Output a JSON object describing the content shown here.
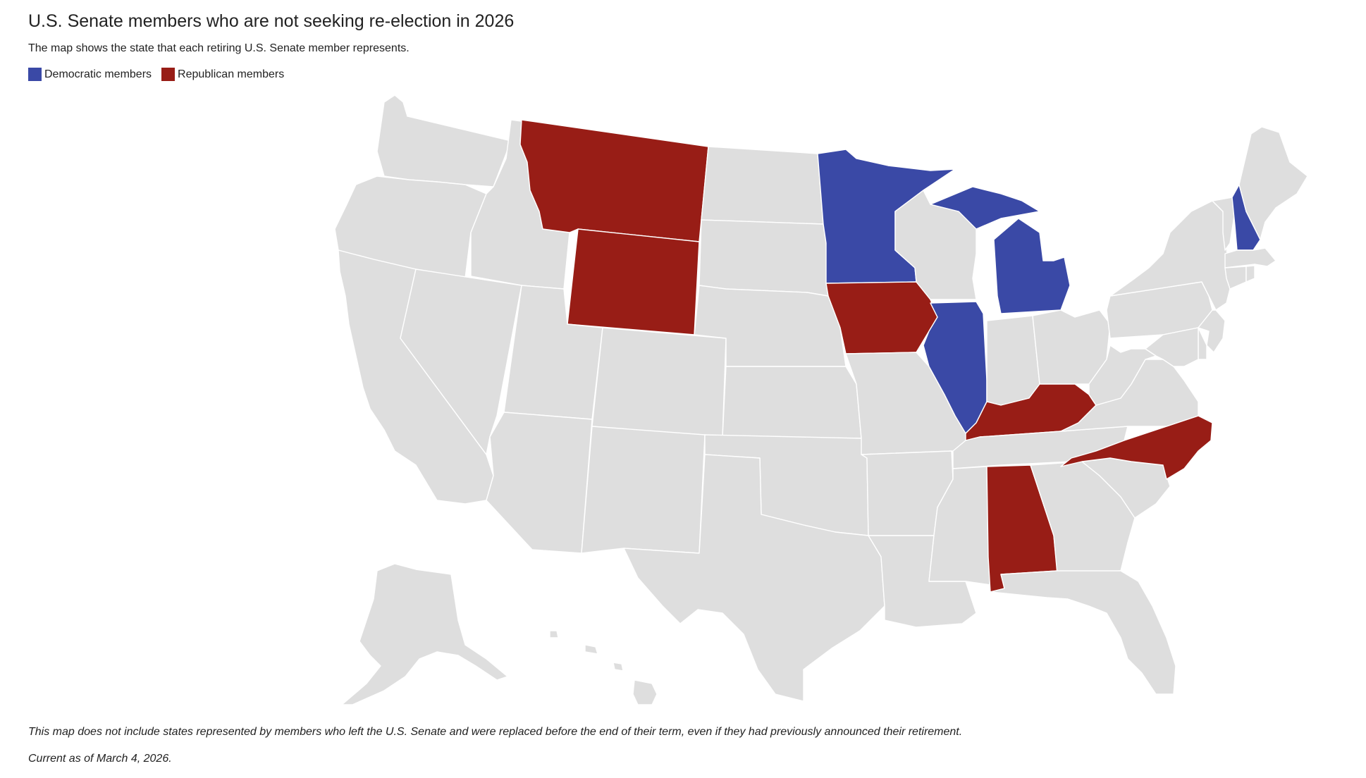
{
  "header": {
    "title": "U.S. Senate members who are not seeking re-election in 2026",
    "subtitle": "The map shows the state that each retiring U.S. Senate member represents."
  },
  "legend": [
    {
      "key": "D",
      "label": "Democratic members",
      "color": "#3a49a6"
    },
    {
      "key": "R",
      "label": "Republican members",
      "color": "#981d16"
    }
  ],
  "map": {
    "base_color": "#dedede",
    "states": [
      {
        "code": "WA",
        "party": ""
      },
      {
        "code": "OR",
        "party": ""
      },
      {
        "code": "CA",
        "party": ""
      },
      {
        "code": "ID",
        "party": ""
      },
      {
        "code": "NV",
        "party": ""
      },
      {
        "code": "MT",
        "party": "R"
      },
      {
        "code": "WY",
        "party": "R"
      },
      {
        "code": "UT",
        "party": ""
      },
      {
        "code": "AZ",
        "party": ""
      },
      {
        "code": "CO",
        "party": ""
      },
      {
        "code": "NM",
        "party": ""
      },
      {
        "code": "ND",
        "party": ""
      },
      {
        "code": "SD",
        "party": ""
      },
      {
        "code": "NE",
        "party": ""
      },
      {
        "code": "KS",
        "party": ""
      },
      {
        "code": "OK",
        "party": ""
      },
      {
        "code": "TX",
        "party": ""
      },
      {
        "code": "MN",
        "party": "D"
      },
      {
        "code": "IA",
        "party": "R"
      },
      {
        "code": "MO",
        "party": ""
      },
      {
        "code": "AR",
        "party": ""
      },
      {
        "code": "LA",
        "party": ""
      },
      {
        "code": "WI",
        "party": ""
      },
      {
        "code": "IL",
        "party": "D"
      },
      {
        "code": "MI",
        "party": "D"
      },
      {
        "code": "IN",
        "party": ""
      },
      {
        "code": "OH",
        "party": ""
      },
      {
        "code": "KY",
        "party": "R"
      },
      {
        "code": "TN",
        "party": ""
      },
      {
        "code": "MS",
        "party": ""
      },
      {
        "code": "AL",
        "party": "R"
      },
      {
        "code": "GA",
        "party": ""
      },
      {
        "code": "FL",
        "party": ""
      },
      {
        "code": "SC",
        "party": ""
      },
      {
        "code": "NC",
        "party": "R"
      },
      {
        "code": "VA",
        "party": ""
      },
      {
        "code": "WV",
        "party": ""
      },
      {
        "code": "PA",
        "party": ""
      },
      {
        "code": "NY",
        "party": ""
      },
      {
        "code": "VT",
        "party": ""
      },
      {
        "code": "NH",
        "party": "D"
      },
      {
        "code": "ME",
        "party": ""
      },
      {
        "code": "MA",
        "party": ""
      },
      {
        "code": "CT",
        "party": ""
      },
      {
        "code": "RI",
        "party": ""
      },
      {
        "code": "NJ",
        "party": ""
      },
      {
        "code": "DE",
        "party": ""
      },
      {
        "code": "MD",
        "party": ""
      },
      {
        "code": "AK",
        "party": ""
      },
      {
        "code": "HI",
        "party": ""
      }
    ]
  },
  "footer": {
    "note": "This map does not include states represented by members who left the U.S. Senate and were replaced before the end of their term, even if they had previously announced their retirement.",
    "as_of": "Current as of March 4, 2026."
  }
}
